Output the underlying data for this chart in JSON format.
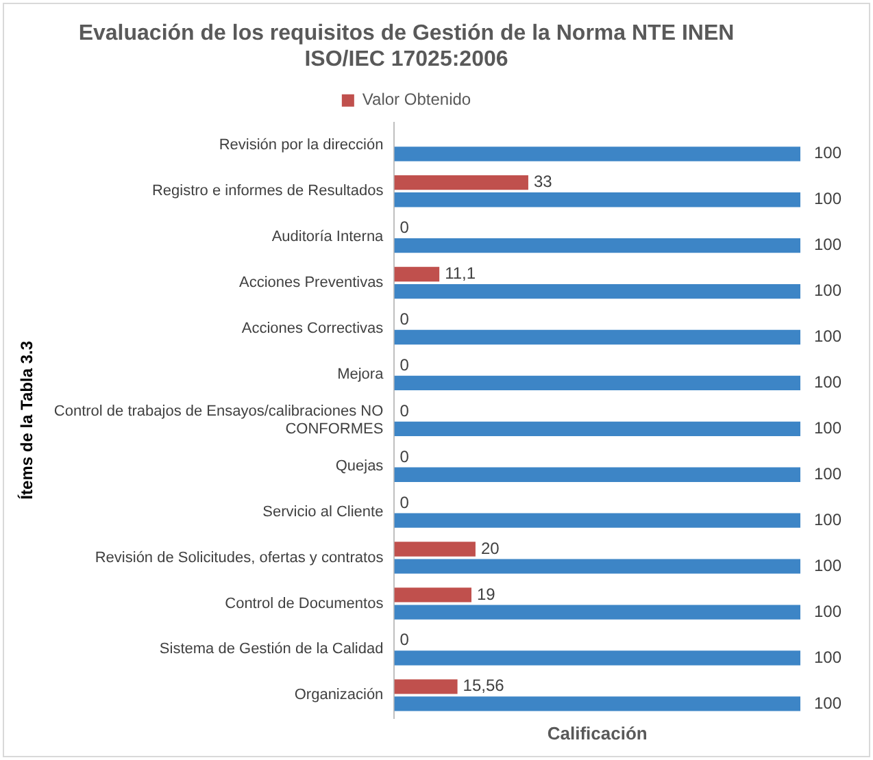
{
  "chart_data": {
    "type": "bar",
    "orientation": "horizontal",
    "title": "Evaluación de los requisitos de Gestión de la Norma NTE INEN ISO/IEC 17025:2006",
    "xlabel": "Calificación",
    "ylabel": "Ítems de la Tabla 3.3",
    "categories": [
      "Revisión por la dirección",
      "Registro e informes de Resultados",
      "Auditoría Interna",
      "Acciones Preventivas",
      "Acciones Correctivas",
      "Mejora",
      "Control de trabajos de Ensayos/calibraciones NO CONFORMES",
      "Quejas",
      "Servicio al Cliente",
      "Revisión de Solicitudes, ofertas y contratos",
      "Control de Documentos",
      "Sistema de Gestión de la Calidad",
      "Organización"
    ],
    "series": [
      {
        "name": "Valor Obtenido",
        "color": "#c0504d",
        "values": [
          null,
          33,
          0,
          11.1,
          0,
          0,
          0,
          0,
          0,
          20,
          19,
          0,
          15.56
        ],
        "value_labels": [
          null,
          "33",
          "0",
          "11,1",
          "0",
          "0",
          "0",
          "0",
          "0",
          "20",
          "19",
          "0",
          "15,56"
        ]
      },
      {
        "color": "#3d85c6",
        "values": [
          100,
          100,
          100,
          100,
          100,
          100,
          100,
          100,
          100,
          100,
          100,
          100,
          100
        ],
        "value_labels": [
          "100",
          "100",
          "100",
          "100",
          "100",
          "100",
          "100",
          "100",
          "100",
          "100",
          "100",
          "100",
          "100"
        ]
      }
    ],
    "grid": false,
    "legend": "top",
    "tick_labels": "y"
  }
}
